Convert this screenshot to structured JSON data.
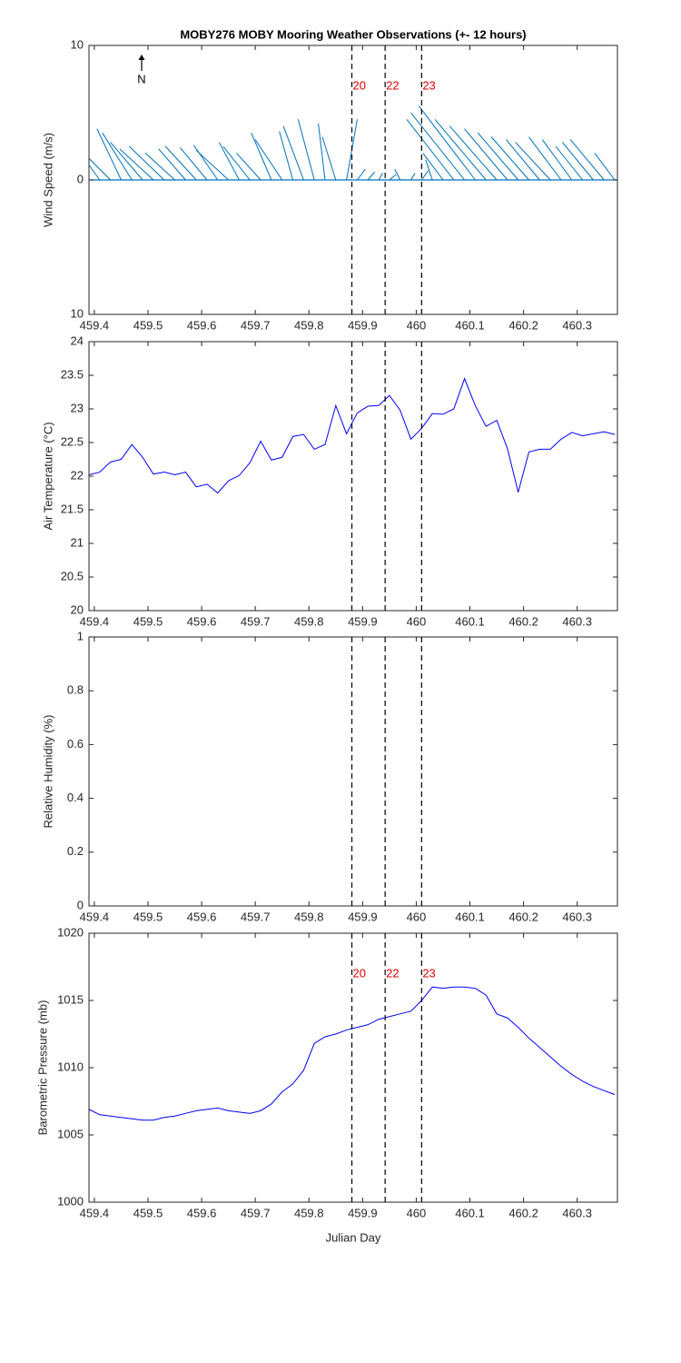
{
  "chart_data": [
    {
      "type": "stick",
      "title": "MOBY276 MOBY Mooring Weather Observations (+- 12 hours)",
      "ylabel": "Wind Speed (m/s)",
      "annotation": "N",
      "color": "#0072bd",
      "x": [
        459.39,
        459.41,
        459.43,
        459.45,
        459.47,
        459.49,
        459.51,
        459.53,
        459.55,
        459.57,
        459.59,
        459.61,
        459.63,
        459.65,
        459.67,
        459.69,
        459.71,
        459.73,
        459.75,
        459.77,
        459.79,
        459.81,
        459.83,
        459.85,
        459.87,
        459.89,
        459.91,
        459.93,
        459.95,
        459.97,
        459.99,
        460.01,
        460.03,
        460.05,
        460.07,
        460.09,
        460.11,
        460.13,
        460.15,
        460.17,
        460.19,
        460.21,
        460.23,
        460.25,
        460.27,
        460.29,
        460.31,
        460.33,
        460.35,
        460.37
      ],
      "u": [
        -2.0,
        -2.3,
        -2.5,
        -1.8,
        -2.2,
        -2.4,
        -2.5,
        -2.6,
        -2.2,
        -2.0,
        -2.3,
        -2.0,
        -1.8,
        -2.4,
        -1.5,
        -2.0,
        -1.8,
        -1.5,
        -2.0,
        -1.0,
        -1.5,
        -1.2,
        -0.5,
        -1.0,
        0.8,
        0.6,
        0.5,
        0.3,
        0.5,
        -0.4,
        0.3,
        0.5,
        -0.5,
        -1.5,
        -3.5,
        -4.0,
        -4.2,
        -3.8,
        -3.5,
        -3.2,
        -3.0,
        -2.8,
        -2.5,
        -2.6,
        -2.4,
        -2.2,
        -2.0,
        -2.3,
        -2.5,
        -1.5
      ],
      "v": [
        3.5,
        3.2,
        2.5,
        3.8,
        3.5,
        2.8,
        2.3,
        2.5,
        2.0,
        2.3,
        2.5,
        2.4,
        2.6,
        2.2,
        2.8,
        2.5,
        2.0,
        3.5,
        3.0,
        3.6,
        4.0,
        4.5,
        4.2,
        3.2,
        4.5,
        0.8,
        0.6,
        0.5,
        0.4,
        0.8,
        0.5,
        0.7,
        1.5,
        2.0,
        4.5,
        5.0,
        5.5,
        4.5,
        4.0,
        3.8,
        3.5,
        3.2,
        3.0,
        2.8,
        3.2,
        3.0,
        2.5,
        2.8,
        3.0,
        2.0
      ],
      "xlim": [
        459.39,
        460.375
      ],
      "xticks": [
        459.4,
        459.5,
        459.6,
        459.7,
        459.8,
        459.9,
        460,
        460.1,
        460.2,
        460.3
      ],
      "ylim": [
        -10,
        10
      ],
      "yticks": [
        {
          "value": -10,
          "label": "10"
        },
        0,
        10
      ],
      "vlines": [
        459.88,
        459.942,
        460.01
      ],
      "vline_labels": [
        "20",
        "22",
        "23"
      ],
      "vline_color": "#e00000"
    },
    {
      "type": "line",
      "ylabel": "Air Temperature (°C)",
      "color": "#0000ff",
      "x": [
        459.39,
        459.41,
        459.43,
        459.45,
        459.47,
        459.49,
        459.51,
        459.53,
        459.55,
        459.57,
        459.59,
        459.61,
        459.63,
        459.65,
        459.67,
        459.69,
        459.71,
        459.73,
        459.75,
        459.77,
        459.79,
        459.81,
        459.83,
        459.85,
        459.87,
        459.89,
        459.91,
        459.93,
        459.95,
        459.97,
        459.99,
        460.01,
        460.03,
        460.05,
        460.07,
        460.09,
        460.11,
        460.13,
        460.15,
        460.17,
        460.19,
        460.21,
        460.23,
        460.25,
        460.27,
        460.29,
        460.31,
        460.33,
        460.35,
        460.37
      ],
      "values": [
        22.02,
        22.06,
        22.21,
        22.25,
        22.47,
        22.28,
        22.03,
        22.06,
        22.02,
        22.06,
        21.84,
        21.88,
        21.75,
        21.93,
        22.01,
        22.2,
        22.52,
        22.24,
        22.28,
        22.59,
        22.62,
        22.4,
        22.47,
        23.05,
        22.63,
        22.94,
        23.04,
        23.05,
        23.2,
        22.98,
        22.55,
        22.71,
        22.93,
        22.92,
        23.0,
        23.45,
        23.05,
        22.74,
        22.83,
        22.41,
        21.76,
        22.36,
        22.4,
        22.4,
        22.55,
        22.65,
        22.6,
        22.63,
        22.66,
        22.62
      ],
      "xlim": [
        459.39,
        460.375
      ],
      "xticks": [
        459.4,
        459.5,
        459.6,
        459.7,
        459.8,
        459.9,
        460,
        460.1,
        460.2,
        460.3
      ],
      "ylim": [
        20,
        24
      ],
      "yticks": [
        20,
        20.5,
        21,
        21.5,
        22,
        22.5,
        23,
        23.5,
        24
      ],
      "vlines": [
        459.88,
        459.942,
        460.01
      ]
    },
    {
      "type": "line",
      "ylabel": "Relative Humidity (%)",
      "color": "#0000ff",
      "xlim": [
        459.39,
        460.375
      ],
      "xticks": [
        459.4,
        459.5,
        459.6,
        459.7,
        459.8,
        459.9,
        460,
        460.1,
        460.2,
        460.3
      ],
      "ylim": [
        0,
        1
      ],
      "yticks": [
        0,
        0.2,
        0.4,
        0.6,
        0.8,
        1
      ],
      "vlines": [
        459.88,
        459.942,
        460.01
      ]
    },
    {
      "type": "line",
      "ylabel": "Barometric Pressure (mb)",
      "xlabel": "Julian Day",
      "color": "#0000ff",
      "x": [
        459.39,
        459.41,
        459.43,
        459.45,
        459.47,
        459.49,
        459.51,
        459.53,
        459.55,
        459.57,
        459.59,
        459.61,
        459.63,
        459.65,
        459.67,
        459.69,
        459.71,
        459.73,
        459.75,
        459.77,
        459.79,
        459.81,
        459.83,
        459.85,
        459.87,
        459.89,
        459.91,
        459.93,
        459.95,
        459.97,
        459.99,
        460.01,
        460.03,
        460.05,
        460.07,
        460.09,
        460.11,
        460.13,
        460.15,
        460.17,
        460.19,
        460.21,
        460.23,
        460.25,
        460.27,
        460.29,
        460.31,
        460.33,
        460.35,
        460.37
      ],
      "values": [
        1006.9,
        1006.5,
        1006.4,
        1006.3,
        1006.2,
        1006.1,
        1006.1,
        1006.3,
        1006.4,
        1006.6,
        1006.8,
        1006.9,
        1007.0,
        1006.8,
        1006.7,
        1006.6,
        1006.8,
        1007.3,
        1008.2,
        1008.8,
        1009.8,
        1011.8,
        1012.3,
        1012.5,
        1012.8,
        1013.0,
        1013.2,
        1013.6,
        1013.8,
        1014.0,
        1014.2,
        1015.0,
        1016.0,
        1015.9,
        1016.0,
        1016.0,
        1015.9,
        1015.4,
        1014.0,
        1013.7,
        1013.0,
        1012.2,
        1011.5,
        1010.8,
        1010.1,
        1009.5,
        1009.0,
        1008.6,
        1008.3,
        1008.0
      ],
      "xlim": [
        459.39,
        460.375
      ],
      "xticks": [
        459.4,
        459.5,
        459.6,
        459.7,
        459.8,
        459.9,
        460,
        460.1,
        460.2,
        460.3
      ],
      "ylim": [
        1000,
        1020
      ],
      "yticks": [
        1000,
        1005,
        1010,
        1015,
        1020
      ],
      "vlines": [
        459.88,
        459.942,
        460.01
      ],
      "vline_labels": [
        "20",
        "22",
        "23"
      ],
      "vline_color": "#e00000"
    }
  ]
}
